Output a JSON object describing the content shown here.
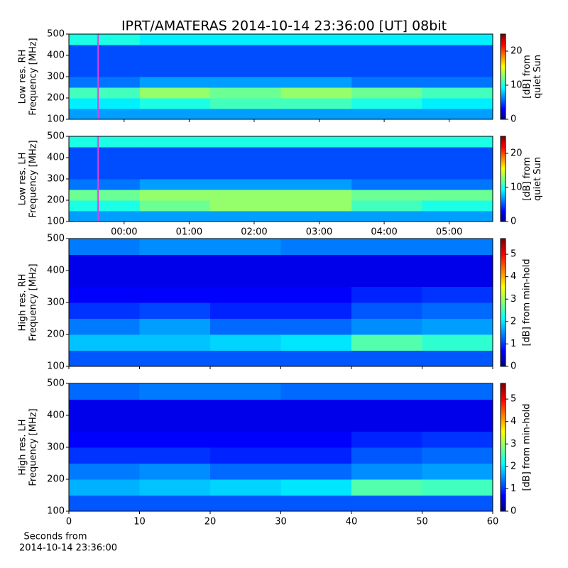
{
  "title": "IPRT/AMATERAS 2014-10-14 23:36:00 [UT]   08bit",
  "chart_data": [
    {
      "type": "heatmap",
      "ylabel": [
        "Low res. RH",
        "Frequency [MHz]"
      ],
      "ylim": [
        100,
        500
      ],
      "yticks": [
        100,
        200,
        300,
        400,
        500
      ],
      "xlim": [
        -0.85,
        5.67
      ],
      "xticks": [
        {
          "value": 0,
          "label": "00:00"
        },
        {
          "value": 1,
          "label": "01:00"
        },
        {
          "value": 2,
          "label": "02:00"
        },
        {
          "value": 3,
          "label": "03:00"
        },
        {
          "value": 4,
          "label": "04:00"
        },
        {
          "value": 5,
          "label": "05:00"
        }
      ],
      "xticklabels": false,
      "marker_x": -0.4,
      "marker_color": "#e83cdc",
      "x_bins": [
        -0.85,
        0.24,
        1.32,
        2.41,
        3.5,
        4.58,
        5.67
      ],
      "y_bins": [
        100,
        150,
        200,
        250,
        300,
        350,
        400,
        450,
        500
      ],
      "z": [
        [
          7,
          7,
          7,
          7,
          7,
          7
        ],
        [
          9,
          10,
          11,
          11,
          10,
          9
        ],
        [
          11,
          13,
          12,
          13,
          12,
          11
        ],
        [
          6,
          7,
          7,
          7,
          6,
          6
        ],
        [
          5,
          5,
          5,
          5,
          5,
          5
        ],
        [
          5,
          5,
          5,
          5,
          5,
          5
        ],
        [
          5,
          5,
          5,
          5,
          5,
          5
        ],
        [
          10,
          9,
          9,
          9,
          9,
          9
        ]
      ],
      "colormap": "jet",
      "clim": [
        0,
        25
      ],
      "cticks": [
        0,
        10,
        20
      ],
      "clabel": [
        "[dB] from",
        "quiet Sun"
      ]
    },
    {
      "type": "heatmap",
      "ylabel": [
        "Low res. LH",
        "Frequency [MHz]"
      ],
      "ylim": [
        100,
        500
      ],
      "yticks": [
        100,
        200,
        300,
        400,
        500
      ],
      "xlim": [
        -0.85,
        5.67
      ],
      "xticks": [
        {
          "value": 0,
          "label": "00:00"
        },
        {
          "value": 1,
          "label": "01:00"
        },
        {
          "value": 2,
          "label": "02:00"
        },
        {
          "value": 3,
          "label": "03:00"
        },
        {
          "value": 4,
          "label": "04:00"
        },
        {
          "value": 5,
          "label": "05:00"
        }
      ],
      "xticklabels": true,
      "marker_x": -0.4,
      "marker_color": "#e83cdc",
      "x_bins": [
        -0.85,
        0.24,
        1.32,
        2.41,
        3.5,
        4.58,
        5.67
      ],
      "y_bins": [
        100,
        150,
        200,
        250,
        300,
        350,
        400,
        450,
        500
      ],
      "z": [
        [
          7,
          7,
          7,
          7,
          7,
          7
        ],
        [
          10,
          12,
          13,
          13,
          11,
          10
        ],
        [
          12,
          13,
          13,
          13,
          12,
          12
        ],
        [
          6,
          7,
          7,
          7,
          6,
          6
        ],
        [
          5,
          5,
          5,
          5,
          5,
          5
        ],
        [
          5,
          5,
          5,
          5,
          5,
          5
        ],
        [
          5,
          5,
          5,
          5,
          5,
          5
        ],
        [
          10,
          10,
          10,
          10,
          10,
          10
        ]
      ],
      "colormap": "jet",
      "clim": [
        0,
        25
      ],
      "cticks": [
        0,
        10,
        20
      ],
      "clabel": [
        "[dB] from",
        "quiet Sun"
      ]
    },
    {
      "type": "heatmap",
      "ylabel": [
        "High res. RH",
        "Frequency [MHz]"
      ],
      "ylim": [
        100,
        500
      ],
      "yticks": [
        100,
        200,
        300,
        400,
        500
      ],
      "xlim": [
        0,
        60
      ],
      "xticks": [
        0,
        10,
        20,
        30,
        40,
        50,
        60
      ],
      "xticklabels": false,
      "x_bins": [
        0,
        10,
        20,
        30,
        40,
        50,
        60
      ],
      "y_bins": [
        100,
        150,
        200,
        250,
        300,
        350,
        400,
        450,
        500
      ],
      "z": [
        [
          1.2,
          1.2,
          1.2,
          1.2,
          1.2,
          1.2
        ],
        [
          1.8,
          1.8,
          1.9,
          2.0,
          2.6,
          2.4
        ],
        [
          1.4,
          1.6,
          1.3,
          1.3,
          1.5,
          1.6
        ],
        [
          1.0,
          1.1,
          0.9,
          0.9,
          1.2,
          1.3
        ],
        [
          0.7,
          0.7,
          0.7,
          0.7,
          0.9,
          1.0
        ],
        [
          0.6,
          0.6,
          0.6,
          0.6,
          0.6,
          0.6
        ],
        [
          0.6,
          0.6,
          0.6,
          0.6,
          0.6,
          0.6
        ],
        [
          1.4,
          1.5,
          1.5,
          1.4,
          1.4,
          1.4
        ]
      ],
      "colormap": "jet",
      "clim": [
        0,
        5.7
      ],
      "cticks": [
        0,
        1,
        2,
        3,
        4,
        5
      ],
      "clabel": [
        "[dB] from min-hold"
      ]
    },
    {
      "type": "heatmap",
      "ylabel": [
        "High res. LH",
        "Frequency [MHz]"
      ],
      "ylim": [
        100,
        500
      ],
      "yticks": [
        100,
        200,
        300,
        400,
        500
      ],
      "xlim": [
        0,
        60
      ],
      "xticks": [
        0,
        10,
        20,
        30,
        40,
        50,
        60
      ],
      "xticklabels": true,
      "xlabel": [
        "Seconds from",
        "2014-10-14 23:36:00"
      ],
      "x_bins": [
        0,
        10,
        20,
        30,
        40,
        50,
        60
      ],
      "y_bins": [
        100,
        150,
        200,
        250,
        300,
        350,
        400,
        450,
        500
      ],
      "z": [
        [
          1.2,
          1.2,
          1.2,
          1.2,
          1.2,
          1.2
        ],
        [
          1.7,
          1.8,
          1.9,
          2.0,
          2.6,
          2.5
        ],
        [
          1.4,
          1.5,
          1.3,
          1.3,
          1.5,
          1.6
        ],
        [
          1.0,
          1.0,
          0.9,
          0.9,
          1.2,
          1.3
        ],
        [
          0.7,
          0.7,
          0.7,
          0.7,
          0.9,
          1.0
        ],
        [
          0.6,
          0.6,
          0.6,
          0.6,
          0.6,
          0.6
        ],
        [
          0.6,
          0.6,
          0.6,
          0.6,
          0.6,
          0.6
        ],
        [
          1.3,
          1.4,
          1.4,
          1.3,
          1.3,
          1.3
        ]
      ],
      "colormap": "jet",
      "clim": [
        0,
        5.7
      ],
      "cticks": [
        0,
        1,
        2,
        3,
        4,
        5
      ],
      "clabel": [
        "[dB] from min-hold"
      ]
    }
  ]
}
